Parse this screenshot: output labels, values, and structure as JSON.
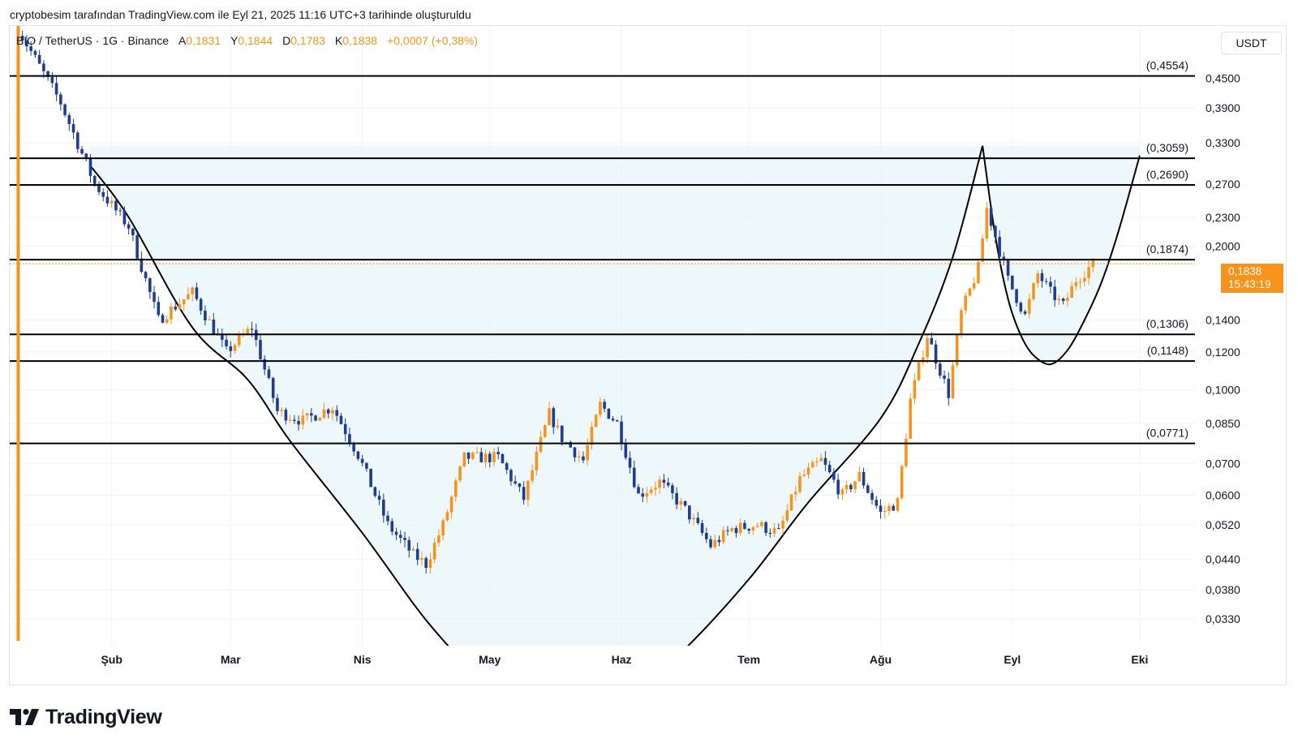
{
  "caption": "cryptobesim tarafından TradingView.com ile Eyl 21, 2025 11:16 UTC+3 tarihinde oluşturuldu",
  "legend": {
    "symbol": "BIO / TetherUS · 1G · Binance",
    "open_label": "A",
    "open_value": "0,1831",
    "high_label": "Y",
    "high_value": "0,1844",
    "low_label": "D",
    "low_value": "0,1783",
    "close_label": "K",
    "close_value": "0,1838",
    "change": "+0,0007 (+0,38%)"
  },
  "unit": "USDT",
  "price_badge": {
    "price": "0,1838",
    "countdown": "15:43:19"
  },
  "brand": "TradingView",
  "colors": {
    "up": "#f7931a",
    "down": "#1e3d8f",
    "accent": "#f7931a",
    "line": "#000000",
    "fill": "#e8f6fa"
  },
  "chart_data": {
    "type": "candlestick",
    "y_scale": "log",
    "ylim": [
      0.029,
      0.58
    ],
    "y_ticks": [
      "0,4500",
      "0,3900",
      "0,3300",
      "0,2700",
      "0,2300",
      "0,2000",
      "0,1400",
      "0,1200",
      "0,1000",
      "0,0850",
      "0,0700",
      "0,0600",
      "0,0520",
      "0,0440",
      "0,0380",
      "0,0330"
    ],
    "x_labels": [
      "Şub",
      "Mar",
      "Nis",
      "May",
      "Haz",
      "Tem",
      "Ağu",
      "Eyl",
      "Eki"
    ],
    "x_range": [
      "2025-01-08",
      "2025-10-14"
    ],
    "horizontal_levels": [
      {
        "label": "(0,4554)",
        "value": 0.4554
      },
      {
        "label": "(0,3059)",
        "value": 0.3059
      },
      {
        "label": "(0,2690)",
        "value": 0.269
      },
      {
        "label": "(0,1874)",
        "value": 0.1874
      },
      {
        "label": "(0,1306)",
        "value": 0.1306
      },
      {
        "label": "(0,1148)",
        "value": 0.1148
      },
      {
        "label": "(0,0771)",
        "value": 0.0771
      }
    ],
    "last_price": 0.1838,
    "anchors": [
      [
        "2025-01-10",
        0.57
      ],
      [
        "2025-01-20",
        0.4
      ],
      [
        "2025-01-28",
        0.27
      ],
      [
        "2025-02-05",
        0.22
      ],
      [
        "2025-02-12",
        0.14
      ],
      [
        "2025-02-20",
        0.16
      ],
      [
        "2025-02-28",
        0.12
      ],
      [
        "2025-03-06",
        0.135
      ],
      [
        "2025-03-12",
        0.09
      ],
      [
        "2025-03-18",
        0.086
      ],
      [
        "2025-03-25",
        0.092
      ],
      [
        "2025-03-31",
        0.073
      ],
      [
        "2025-04-07",
        0.052
      ],
      [
        "2025-04-13",
        0.045
      ],
      [
        "2025-04-16",
        0.043
      ],
      [
        "2025-04-20",
        0.052
      ],
      [
        "2025-04-25",
        0.072
      ],
      [
        "2025-05-03",
        0.072
      ],
      [
        "2025-05-09",
        0.059
      ],
      [
        "2025-05-15",
        0.089
      ],
      [
        "2025-05-18",
        0.079
      ],
      [
        "2025-05-23",
        0.071
      ],
      [
        "2025-05-27",
        0.093
      ],
      [
        "2025-05-31",
        0.085
      ],
      [
        "2025-06-05",
        0.06
      ],
      [
        "2025-06-10",
        0.064
      ],
      [
        "2025-06-16",
        0.056
      ],
      [
        "2025-06-22",
        0.047
      ],
      [
        "2025-06-27",
        0.051
      ],
      [
        "2025-07-03",
        0.052
      ],
      [
        "2025-07-08",
        0.05
      ],
      [
        "2025-07-13",
        0.065
      ],
      [
        "2025-07-18",
        0.071
      ],
      [
        "2025-07-23",
        0.06
      ],
      [
        "2025-07-27",
        0.066
      ],
      [
        "2025-08-01",
        0.055
      ],
      [
        "2025-08-05",
        0.058
      ],
      [
        "2025-08-08",
        0.095
      ],
      [
        "2025-08-12",
        0.13
      ],
      [
        "2025-08-17",
        0.098
      ],
      [
        "2025-08-20",
        0.145
      ],
      [
        "2025-08-24",
        0.18
      ],
      [
        "2025-08-26",
        0.24
      ],
      [
        "2025-08-28",
        0.21
      ],
      [
        "2025-08-31",
        0.17
      ],
      [
        "2025-09-04",
        0.143
      ],
      [
        "2025-09-07",
        0.175
      ],
      [
        "2025-09-10",
        0.16
      ],
      [
        "2025-09-13",
        0.15
      ],
      [
        "2025-09-16",
        0.17
      ],
      [
        "2025-09-20",
        0.1838
      ]
    ],
    "pattern_lines": [
      {
        "points": [
          [
            "2025-01-27",
            0.295
          ],
          [
            "2025-02-05",
            0.23
          ],
          [
            "2025-02-20",
            0.135
          ],
          [
            "2025-03-05",
            0.105
          ],
          [
            "2025-03-15",
            0.078
          ],
          [
            "2025-04-01",
            0.05
          ],
          [
            "2025-04-17",
            0.032
          ],
          [
            "2025-05-01",
            0.024
          ],
          [
            "2025-05-15",
            0.021
          ],
          [
            "2025-06-01",
            0.022
          ],
          [
            "2025-06-15",
            0.028
          ],
          [
            "2025-07-01",
            0.04
          ],
          [
            "2025-07-15",
            0.058
          ],
          [
            "2025-08-01",
            0.087
          ],
          [
            "2025-08-10",
            0.125
          ],
          [
            "2025-08-18",
            0.19
          ],
          [
            "2025-08-25",
            0.325
          ]
        ]
      },
      {
        "points": [
          [
            "2025-08-25",
            0.325
          ],
          [
            "2025-08-28",
            0.21
          ],
          [
            "2025-08-31",
            0.155
          ],
          [
            "2025-09-03",
            0.13
          ],
          [
            "2025-09-06",
            0.118
          ],
          [
            "2025-09-10",
            0.113
          ],
          [
            "2025-09-14",
            0.121
          ],
          [
            "2025-09-18",
            0.14
          ],
          [
            "2025-09-22",
            0.168
          ],
          [
            "2025-09-26",
            0.215
          ],
          [
            "2025-10-01",
            0.31
          ]
        ]
      }
    ]
  }
}
